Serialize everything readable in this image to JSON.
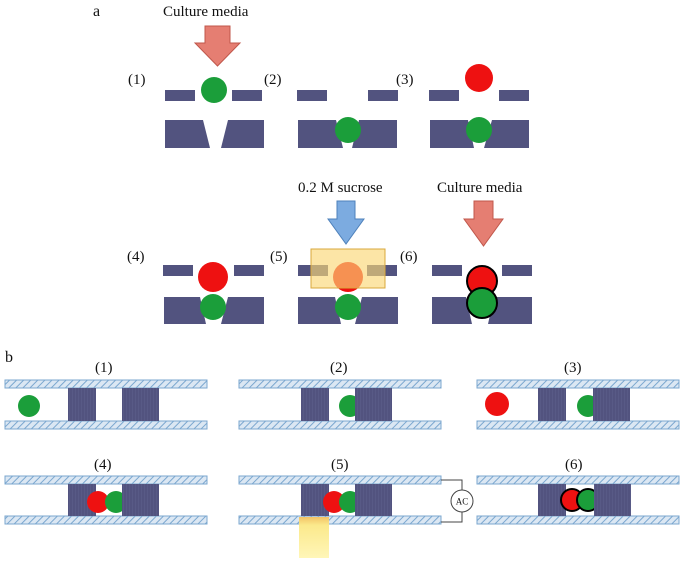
{
  "panel_a": {
    "letter": "a",
    "top_arrow_label": "Culture media",
    "sucrose_label": "0.2 M sucrose",
    "right_arrow_label": "Culture media",
    "steps": [
      "(1)",
      "(2)",
      "(3)",
      "(4)",
      "(5)",
      "(6)"
    ]
  },
  "panel_b": {
    "letter": "b",
    "steps": [
      "(1)",
      "(2)",
      "(3)",
      "(4)",
      "(5)",
      "(6)"
    ],
    "ac_label": "AC"
  },
  "colors": {
    "block": "#52537f",
    "green": "#1b9e3a",
    "red": "#ee1111",
    "arrow_down_pink": "#e57e72",
    "arrow_down_blue": "#7cabe0",
    "sucrose_box": "#fbd776",
    "hatch": "#8ab3d6"
  }
}
